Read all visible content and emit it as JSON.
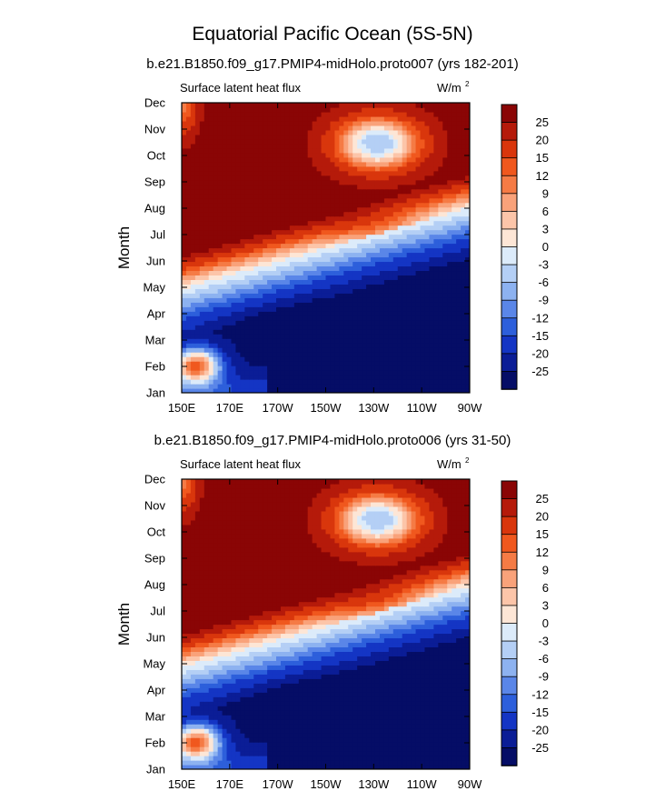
{
  "figure": {
    "title": "Equatorial Pacific Ocean (5S-5N)"
  },
  "chart_data": [
    {
      "type": "heatmap",
      "title": "b.e21.B1850.f09_g17.PMIP4-midHolo.proto007 (yrs 182-201)",
      "left_label": "Surface latent heat flux",
      "right_label": "W/m",
      "unit_superscript": "2",
      "ylabel": "Month",
      "xlabel": "",
      "x_ticks": [
        "150E",
        "170E",
        "170W",
        "150W",
        "130W",
        "110W",
        "90W"
      ],
      "y_ticks": [
        "Jan",
        "Feb",
        "Mar",
        "Apr",
        "May",
        "Jun",
        "Jul",
        "Aug",
        "Sep",
        "Oct",
        "Nov",
        "Dec"
      ],
      "colorbar_levels": [
        "25",
        "20",
        "15",
        "12",
        "9",
        "6",
        "3",
        "0",
        "-3",
        "-6",
        "-9",
        "-12",
        "-15",
        "-20",
        "-25"
      ],
      "colorbar_colors": [
        "#8a0505",
        "#b51a0a",
        "#d9360c",
        "#f0581e",
        "#f57b45",
        "#f9a27a",
        "#fcc5a9",
        "#fde6d6",
        "#dcebfa",
        "#b4cff5",
        "#8db2f0",
        "#5a86e8",
        "#2d5fdb",
        "#1435c4",
        "#0b1d96",
        "#050d66"
      ],
      "phase_shift": 0.0,
      "x_range": [
        "150E",
        "90W"
      ],
      "y_range": [
        "Jan",
        "Dec"
      ]
    },
    {
      "type": "heatmap",
      "title": "b.e21.B1850.f09_g17.PMIP4-midHolo.proto006 (yrs 31-50)",
      "left_label": "Surface latent heat flux",
      "right_label": "W/m",
      "unit_superscript": "2",
      "ylabel": "Month",
      "xlabel": "",
      "x_ticks": [
        "150E",
        "170E",
        "170W",
        "150W",
        "130W",
        "110W",
        "90W"
      ],
      "y_ticks": [
        "Jan",
        "Feb",
        "Mar",
        "Apr",
        "May",
        "Jun",
        "Jul",
        "Aug",
        "Sep",
        "Oct",
        "Nov",
        "Dec"
      ],
      "colorbar_levels": [
        "25",
        "20",
        "15",
        "12",
        "9",
        "6",
        "3",
        "0",
        "-3",
        "-6",
        "-9",
        "-12",
        "-15",
        "-20",
        "-25"
      ],
      "colorbar_colors": [
        "#8a0505",
        "#b51a0a",
        "#d9360c",
        "#f0581e",
        "#f57b45",
        "#f9a27a",
        "#fcc5a9",
        "#fde6d6",
        "#dcebfa",
        "#b4cff5",
        "#8db2f0",
        "#5a86e8",
        "#2d5fdb",
        "#1435c4",
        "#0b1d96",
        "#050d66"
      ],
      "phase_shift": 0.15,
      "x_range": [
        "150E",
        "90W"
      ],
      "y_range": [
        "Jan",
        "Dec"
      ]
    }
  ]
}
